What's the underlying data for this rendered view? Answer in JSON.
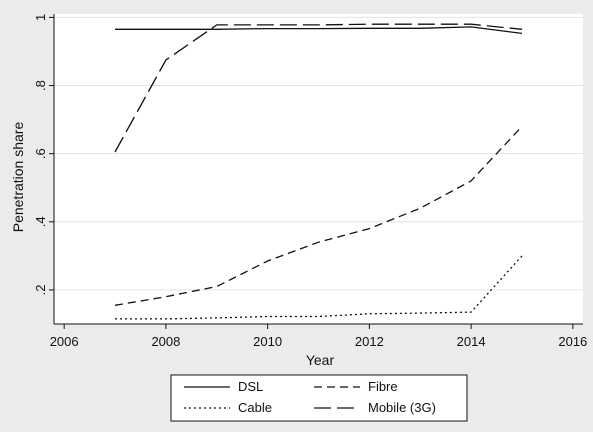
{
  "chart_data": {
    "type": "line",
    "title": "",
    "xlabel": "Year",
    "ylabel": "Penetration share",
    "xlim": [
      2005.8,
      2016.2
    ],
    "ylim": [
      0.1,
      1.01
    ],
    "x_ticks": [
      2006,
      2008,
      2010,
      2012,
      2014,
      2016
    ],
    "x_tick_labels": [
      "2006",
      "2008",
      "2010",
      "2012",
      "2014",
      "2016"
    ],
    "y_ticks": [
      0.2,
      0.4,
      0.6,
      0.8,
      1.0
    ],
    "y_tick_labels": [
      ".2",
      ".4",
      ".6",
      ".8",
      "1"
    ],
    "grid": true,
    "legend_position": "bottom",
    "x": [
      2007,
      2008,
      2009,
      2010,
      2011,
      2012,
      2013,
      2014,
      2015
    ],
    "series": [
      {
        "name": "DSL",
        "style": "solid",
        "values": [
          0.965,
          0.965,
          0.965,
          0.967,
          0.967,
          0.968,
          0.968,
          0.972,
          0.953
        ]
      },
      {
        "name": "Fibre",
        "style": "dash",
        "values": [
          0.155,
          0.18,
          0.21,
          0.285,
          0.34,
          0.38,
          0.44,
          0.52,
          0.68
        ]
      },
      {
        "name": "Cable",
        "style": "dot",
        "values": [
          0.115,
          0.115,
          0.118,
          0.122,
          0.122,
          0.13,
          0.132,
          0.135,
          0.3
        ]
      },
      {
        "name": "Mobile (3G)",
        "style": "longdash",
        "values": [
          0.605,
          0.875,
          0.978,
          0.978,
          0.978,
          0.98,
          0.98,
          0.98,
          0.965
        ]
      }
    ]
  }
}
